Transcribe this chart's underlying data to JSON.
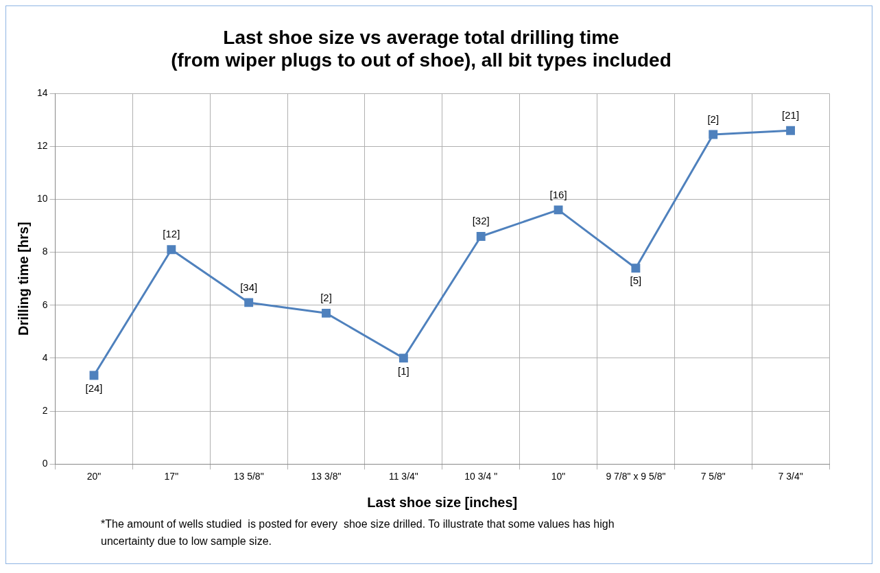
{
  "chart_data": {
    "type": "line",
    "title": "Last shoe size vs average total drilling time\n(from wiper plugs to out of shoe), all bit types included",
    "xlabel": "Last shoe size [inches]",
    "ylabel": "Drilling time [hrs]",
    "categories": [
      "20\"",
      "17\"",
      "13 5/8\"",
      "13 3/8\"",
      "11 3/4\"",
      "10 3/4 \"",
      "10\"",
      "9 7/8\" x 9 5/8\"",
      "7 5/8\"",
      "7 3/4\""
    ],
    "series": [
      {
        "color": "#4f81bd",
        "values": [
          3.35,
          8.1,
          6.1,
          5.7,
          4.0,
          8.6,
          9.6,
          7.4,
          12.45,
          12.6
        ]
      }
    ],
    "ylim": [
      0,
      14
    ],
    "yticks": [
      0,
      2,
      4,
      6,
      8,
      10,
      12,
      14
    ],
    "grid": true,
    "legend": false,
    "marker": "square",
    "line_style": "solid",
    "annotations": [
      {
        "text": "[24]",
        "x": "20\"",
        "y": 3.35
      },
      {
        "text": "[12]",
        "x": "17\"",
        "y": 8.1
      },
      {
        "text": "[34]",
        "x": "13 5/8\"",
        "y": 6.1
      },
      {
        "text": "[2]",
        "x": "13 3/8\"",
        "y": 5.7
      },
      {
        "text": "[1]",
        "x": "11 3/4\"",
        "y": 4.0
      },
      {
        "text": "[32]",
        "x": "10 3/4 \"",
        "y": 8.6
      },
      {
        "text": "[16]",
        "x": "10\"",
        "y": 9.6
      },
      {
        "text": "[5]",
        "x": "9 7/8\" x 9 5/8\"",
        "y": 7.4
      },
      {
        "text": "[2]",
        "x": "7 5/8\"",
        "y": 12.45
      },
      {
        "text": "[21]",
        "x": "7 3/4\"",
        "y": 12.6
      },
      "*The amount of wells studied  is posted for every  shoe size drilled. To illustrate that some values has high uncertainty due to low sample size."
    ]
  }
}
